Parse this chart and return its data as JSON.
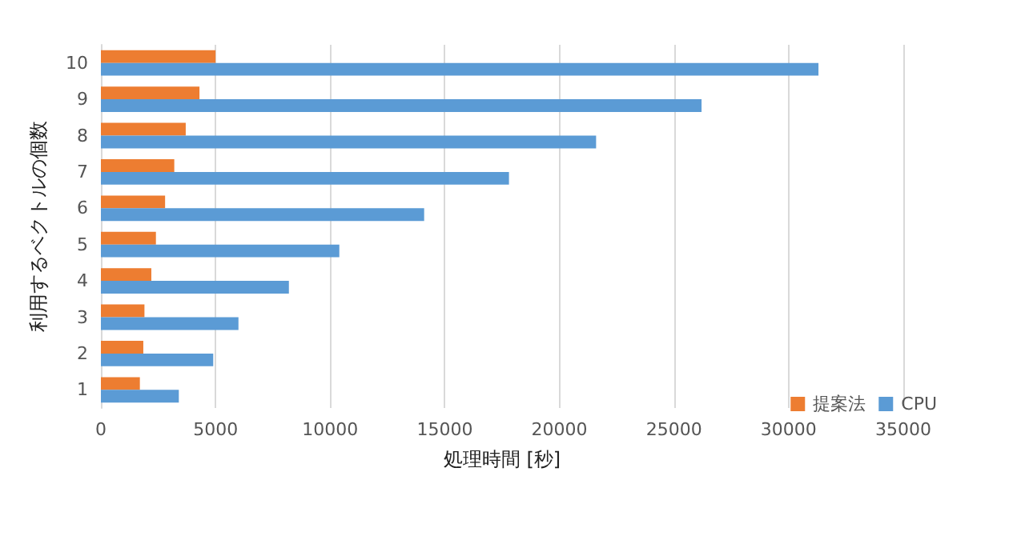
{
  "chart_data": {
    "type": "bar",
    "orientation": "horizontal",
    "xlabel": "処理時間 [秒]",
    "ylabel": "利用するベクトルの個数",
    "categories": [
      "10",
      "9",
      "8",
      "7",
      "6",
      "5",
      "4",
      "3",
      "2",
      "1"
    ],
    "series": [
      {
        "name": "提案法",
        "color": "#ed7d31",
        "values": [
          5000,
          4300,
          3700,
          3200,
          2800,
          2400,
          2200,
          1900,
          1850,
          1700
        ]
      },
      {
        "name": "CPU",
        "color": "#5b9bd5",
        "values": [
          31300,
          26200,
          21600,
          17800,
          14100,
          10400,
          8200,
          6000,
          4900,
          3400
        ]
      }
    ],
    "xlim": [
      0,
      35000
    ],
    "xticks": [
      0,
      5000,
      10000,
      15000,
      20000,
      25000,
      30000,
      35000
    ],
    "grid": "x",
    "legend": "bottom right"
  }
}
